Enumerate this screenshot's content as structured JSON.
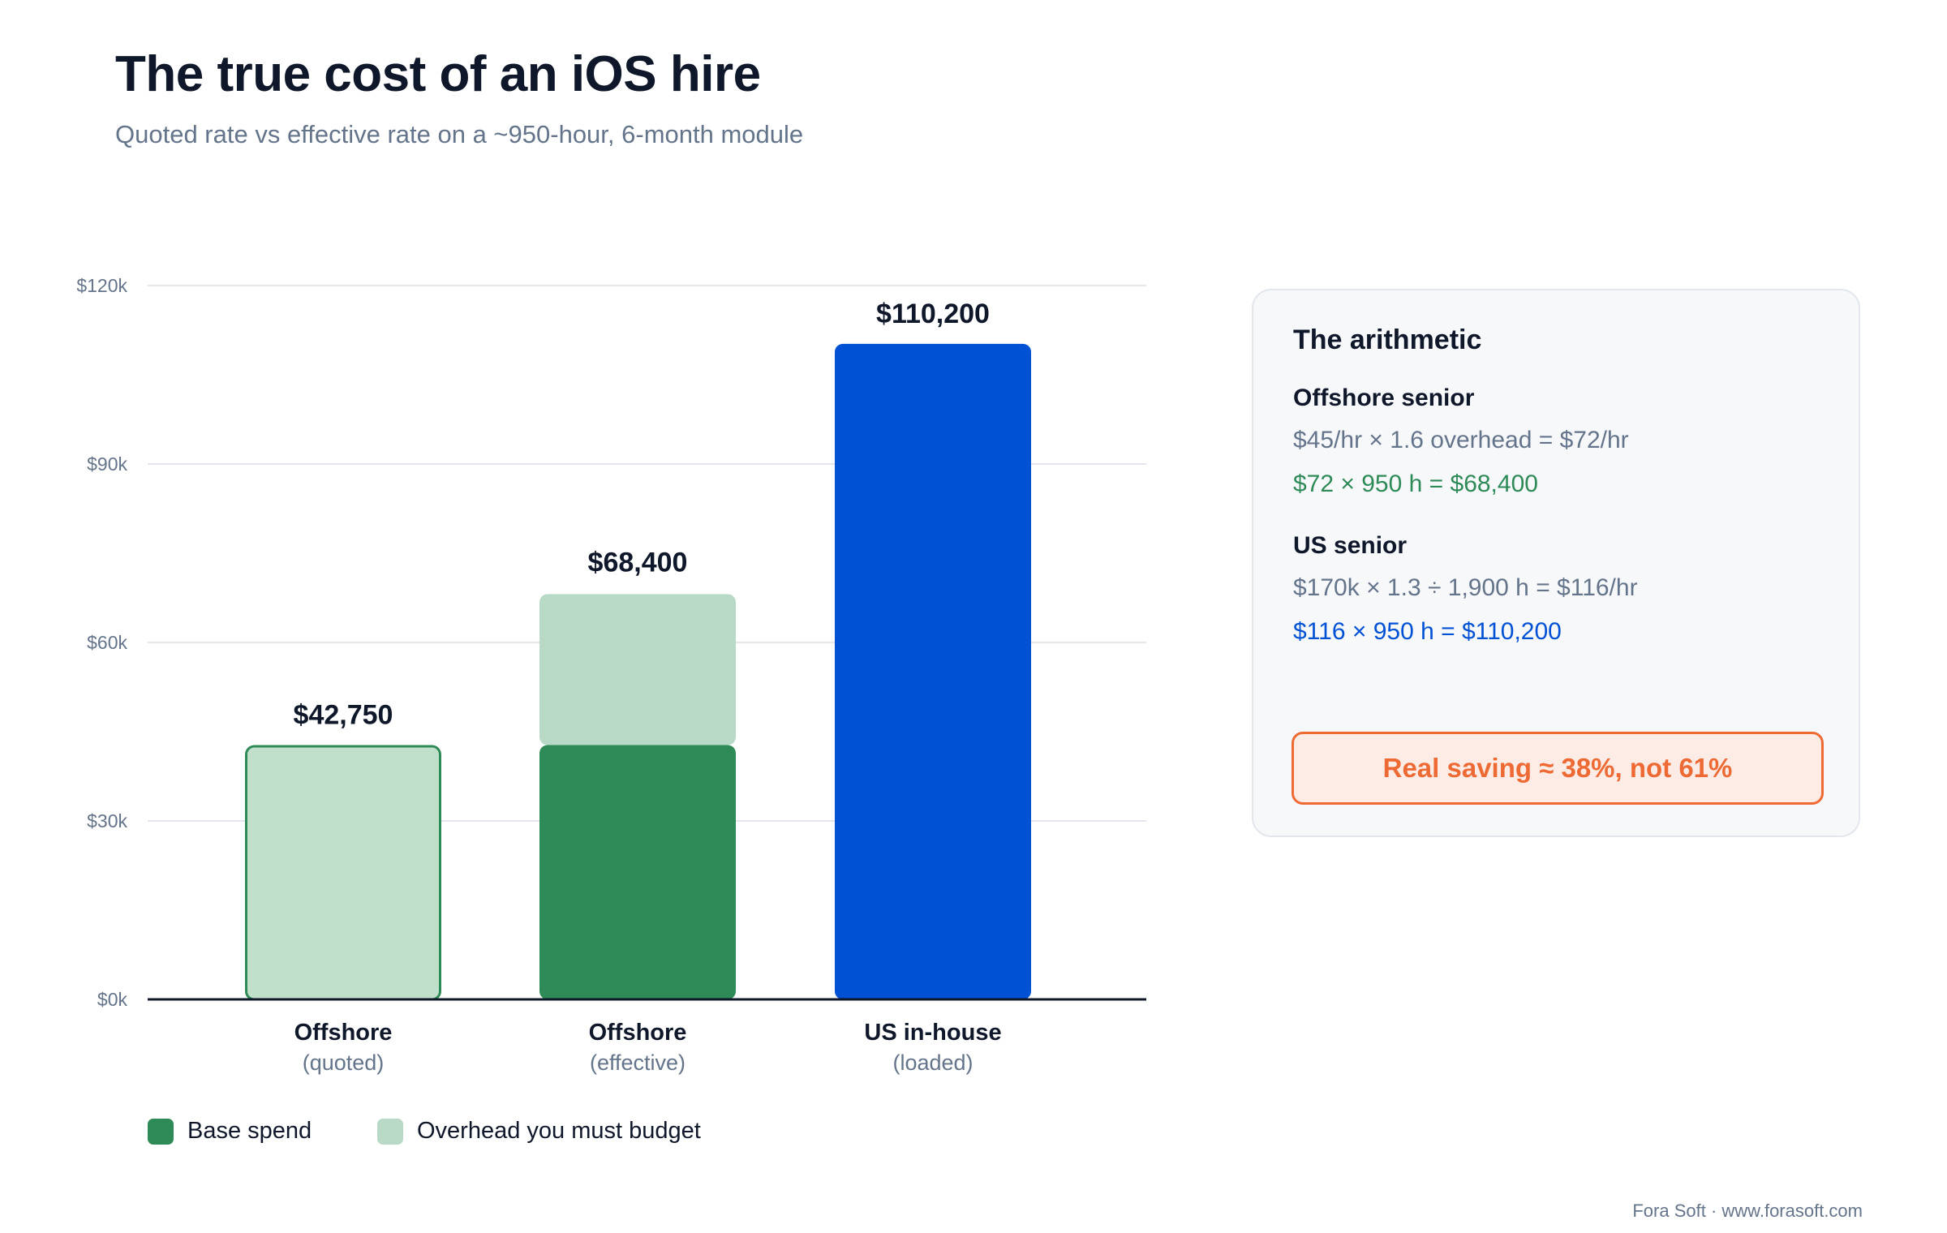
{
  "title": "The true cost of an iOS hire",
  "subtitle": "Quoted rate vs effective rate on a ~950-hour, 6-month module",
  "chart_data": {
    "type": "bar",
    "stacked": true,
    "categories": [
      {
        "name": "Offshore",
        "sub": "(quoted)"
      },
      {
        "name": "Offshore",
        "sub": "(effective)"
      },
      {
        "name": "US in-house",
        "sub": "(loaded)"
      }
    ],
    "bars": [
      {
        "total_label": "$42,750",
        "segments": [
          {
            "series": "Overhead you must budget",
            "from": 0,
            "to": 42750,
            "style": "outlined",
            "color": "#c0e0cc",
            "stroke": "#2e8a57"
          }
        ]
      },
      {
        "total_label": "$68,400",
        "segments": [
          {
            "series": "Base spend",
            "from": 0,
            "to": 42750,
            "style": "solid",
            "color": "#2e8a57"
          },
          {
            "series": "Overhead you must budget",
            "from": 42750,
            "to": 68400,
            "style": "solid",
            "color": "#b8d9c5"
          }
        ]
      },
      {
        "total_label": "$110,200",
        "segments": [
          {
            "series": "US in-house",
            "from": 0,
            "to": 110200,
            "style": "solid",
            "color": "#0051d4"
          }
        ]
      }
    ],
    "ylim": [
      0,
      120000
    ],
    "yticks": [
      {
        "value": 0,
        "label": "$0k"
      },
      {
        "value": 30000,
        "label": "$30k"
      },
      {
        "value": 60000,
        "label": "$60k"
      },
      {
        "value": 90000,
        "label": "$90k"
      },
      {
        "value": 120000,
        "label": "$120k"
      }
    ],
    "grid": true,
    "legend_position": "bottom-left"
  },
  "legend": [
    {
      "label": "Base spend",
      "color": "#2e8a57"
    },
    {
      "label": "Overhead you must budget",
      "color": "#b8d9c5"
    }
  ],
  "arithmetic": {
    "title": "The arithmetic",
    "offshore": {
      "heading": "Offshore senior",
      "line1": "$45/hr × 1.6 overhead = $72/hr",
      "line2": "$72 × 950 h = $68,400"
    },
    "us": {
      "heading": "US senior",
      "line1": "$170k × 1.3 ÷ 1,900 h = $116/hr",
      "line2": "$116 × 950 h = $110,200"
    },
    "saving": "Real saving ≈ 38%, not 61%"
  },
  "footer": "Fora Soft · www.forasoft.com"
}
